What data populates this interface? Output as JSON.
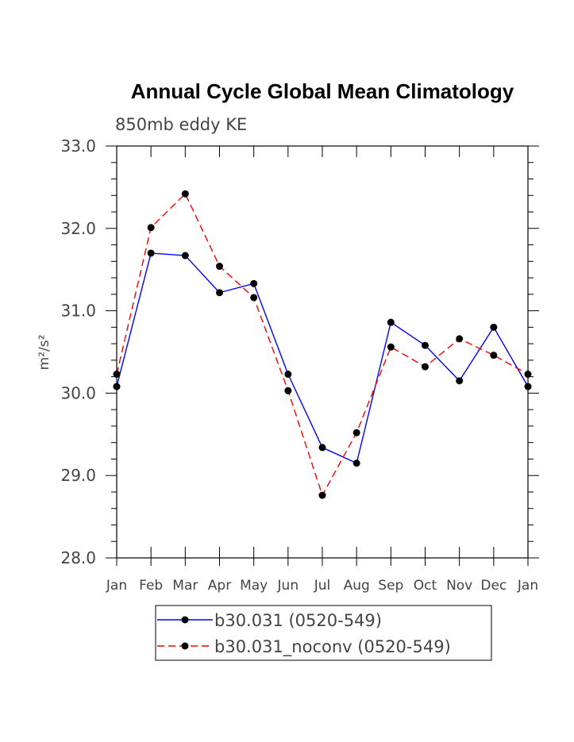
{
  "chart_data": {
    "type": "line",
    "title": "Annual Cycle Global Mean Climatology",
    "subtitle": "850mb eddy KE",
    "xlabel": "",
    "ylabel": "m²/s²",
    "ylim": [
      28.0,
      33.0
    ],
    "yticks": [
      "28.0",
      "29.0",
      "30.0",
      "31.0",
      "32.0",
      "33.0"
    ],
    "categories": [
      "Jan",
      "Feb",
      "Mar",
      "Apr",
      "May",
      "Jun",
      "Jul",
      "Aug",
      "Sep",
      "Oct",
      "Nov",
      "Dec",
      "Jan"
    ],
    "series": [
      {
        "name": "b30.031 (0520-549)",
        "color": "#0000ff",
        "dash": "solid",
        "values": [
          30.08,
          31.7,
          31.67,
          31.22,
          31.33,
          30.23,
          29.34,
          29.15,
          30.86,
          30.58,
          30.15,
          30.8,
          30.08
        ]
      },
      {
        "name": "b30.031_noconv (0520-549)",
        "color": "#ff0000",
        "dash": "dashed",
        "values": [
          30.23,
          32.01,
          32.42,
          31.54,
          31.16,
          30.03,
          28.76,
          29.52,
          30.56,
          30.32,
          30.66,
          30.46,
          30.23
        ]
      }
    ]
  }
}
